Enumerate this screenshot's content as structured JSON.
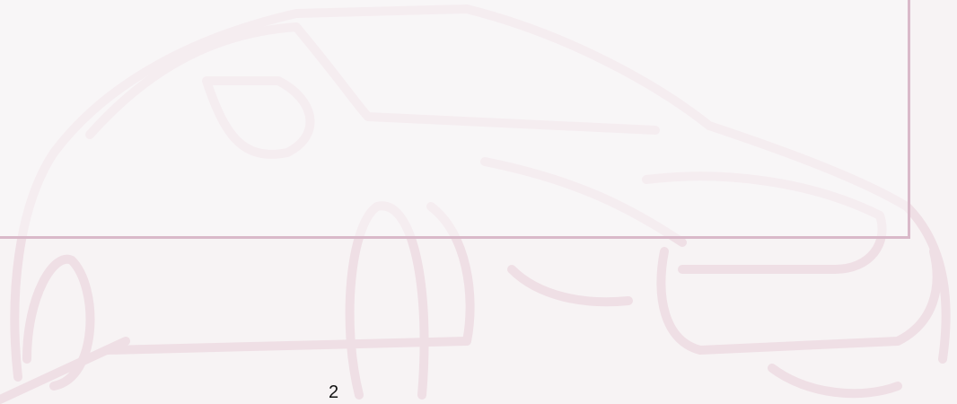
{
  "page_number": "2"
}
